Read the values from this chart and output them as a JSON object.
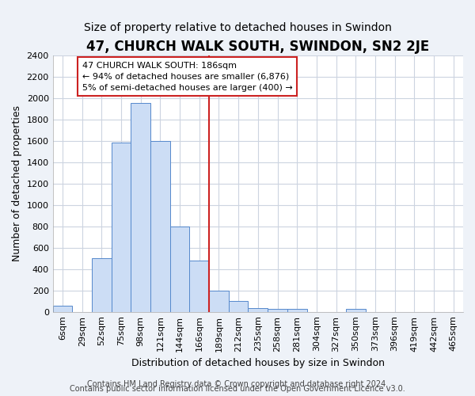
{
  "title": "47, CHURCH WALK SOUTH, SWINDON, SN2 2JE",
  "subtitle": "Size of property relative to detached houses in Swindon",
  "xlabel": "Distribution of detached houses by size in Swindon",
  "ylabel": "Number of detached properties",
  "bar_labels": [
    "6sqm",
    "29sqm",
    "52sqm",
    "75sqm",
    "98sqm",
    "121sqm",
    "144sqm",
    "166sqm",
    "189sqm",
    "212sqm",
    "235sqm",
    "258sqm",
    "281sqm",
    "304sqm",
    "327sqm",
    "350sqm",
    "373sqm",
    "396sqm",
    "419sqm",
    "442sqm",
    "465sqm"
  ],
  "bar_values": [
    60,
    0,
    500,
    1580,
    1950,
    1600,
    800,
    480,
    200,
    100,
    35,
    30,
    25,
    0,
    0,
    25,
    0,
    0,
    0,
    0,
    0
  ],
  "bar_color": "#ccddf5",
  "bar_edge_color": "#5588cc",
  "vline_color": "#cc2222",
  "vline_index": 8,
  "annotation_text": "47 CHURCH WALK SOUTH: 186sqm\n← 94% of detached houses are smaller (6,876)\n5% of semi-detached houses are larger (400) →",
  "annotation_box_color": "#ffffff",
  "annotation_box_edge_color": "#cc2222",
  "ylim": [
    0,
    2400
  ],
  "yticks": [
    0,
    200,
    400,
    600,
    800,
    1000,
    1200,
    1400,
    1600,
    1800,
    2000,
    2200,
    2400
  ],
  "grid_color": "#ccd4e0",
  "plot_bg_color": "#ffffff",
  "fig_bg_color": "#eef2f8",
  "footer_line1": "Contains HM Land Registry data © Crown copyright and database right 2024.",
  "footer_line2": "Contains public sector information licensed under the Open Government Licence v3.0.",
  "title_fontsize": 12,
  "subtitle_fontsize": 10,
  "xlabel_fontsize": 9,
  "ylabel_fontsize": 9,
  "tick_fontsize": 8,
  "annotation_fontsize": 8,
  "footer_fontsize": 7
}
